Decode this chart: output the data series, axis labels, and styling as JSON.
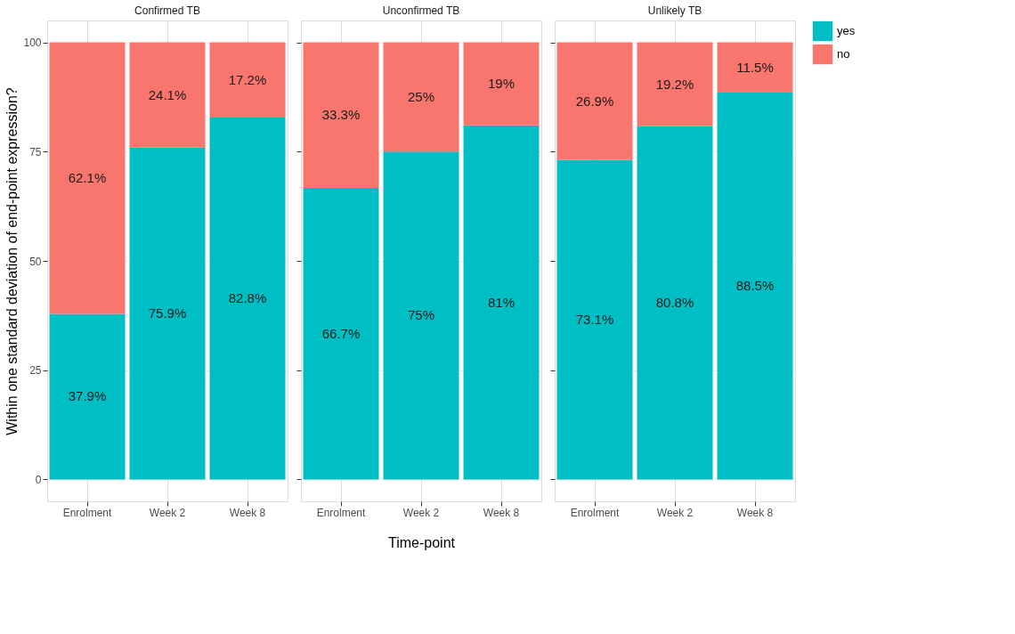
{
  "chart_data": [
    {
      "type": "bar",
      "title": "Confirmed TB",
      "ylabel": "Within one standard deviation of end-point expression?",
      "categories": [
        "Enrolment",
        "Week 2",
        "Week 8"
      ],
      "stacked": true,
      "ylim": [
        -5,
        105
      ],
      "yticks": [
        0,
        25,
        50,
        75,
        100
      ],
      "grid": true,
      "legend": "right",
      "series": [
        {
          "name": "yes",
          "color": "#00bfc4",
          "values": [
            37.9,
            75.9,
            82.8
          ],
          "value_labels": [
            "37.9%",
            "75.9%",
            "82.8%"
          ]
        },
        {
          "name": "no",
          "color": "#f8766d",
          "values": [
            62.1,
            24.1,
            17.2
          ],
          "value_labels": [
            "62.1%",
            "24.1%",
            "17.2%"
          ]
        }
      ]
    },
    {
      "type": "bar",
      "title": "Unconfirmed TB",
      "xlabel": "Time-point",
      "categories": [
        "Enrolment",
        "Week 2",
        "Week 8"
      ],
      "stacked": true,
      "ylim": [
        -5,
        105
      ],
      "yticks": [
        0,
        25,
        50,
        75,
        100
      ],
      "grid": true,
      "tick_labels": "x",
      "series": [
        {
          "color": "#00bfc4",
          "values": [
            66.7,
            75,
            81
          ],
          "value_labels": [
            "66.7%",
            "75%",
            "81%"
          ]
        },
        {
          "color": "#f8766d",
          "values": [
            33.3,
            25,
            19
          ],
          "value_labels": [
            "33.3%",
            "25%",
            "19%"
          ]
        }
      ]
    },
    {
      "type": "bar",
      "title": "Unlikely TB",
      "categories": [
        "Enrolment",
        "Week 2",
        "Week 8"
      ],
      "stacked": true,
      "ylim": [
        -5,
        105
      ],
      "yticks": [
        0,
        25,
        50,
        75,
        100
      ],
      "grid": true,
      "tick_labels": "x",
      "series": [
        {
          "color": "#00bfc4",
          "values": [
            73.1,
            80.8,
            88.5
          ],
          "value_labels": [
            "73.1%",
            "80.8%",
            "88.5%"
          ]
        },
        {
          "color": "#f8766d",
          "values": [
            26.9,
            19.2,
            11.5
          ],
          "value_labels": [
            "26.9%",
            "19.2%",
            "11.5%"
          ]
        }
      ]
    }
  ]
}
